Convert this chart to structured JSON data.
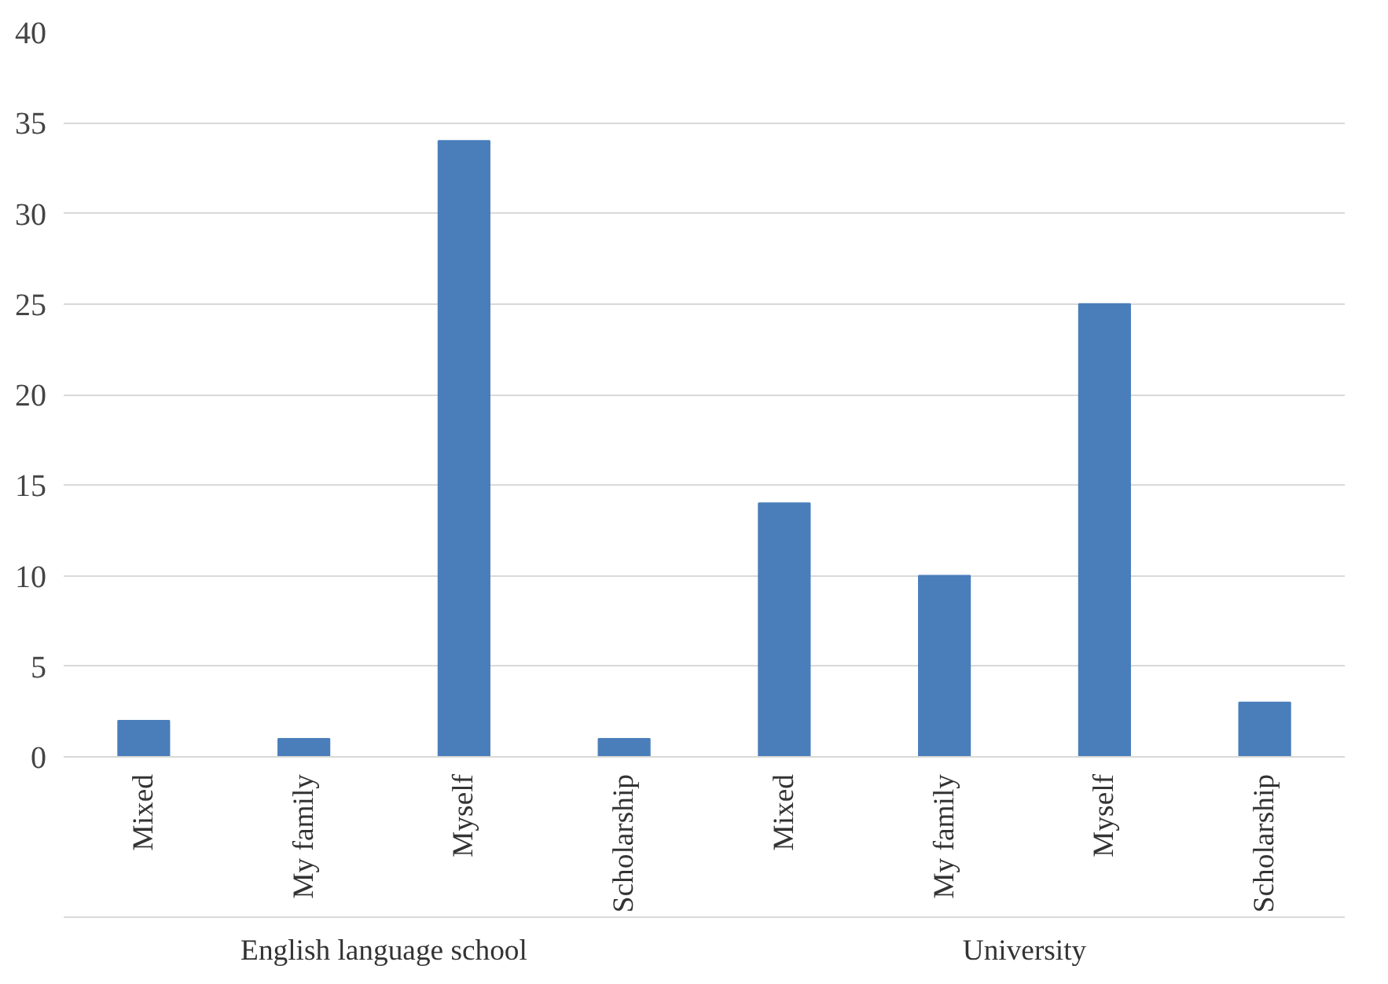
{
  "chart_data": {
    "type": "bar",
    "categories": [
      "Mixed",
      "My family",
      "Myself",
      "Scholarship",
      "Mixed",
      "My family",
      "Myself",
      "Scholarship"
    ],
    "values": [
      2,
      1,
      34,
      1,
      14,
      10,
      25,
      3
    ],
    "color": "#4a7ebb",
    "ylim": [
      0,
      40
    ],
    "yticks": [
      0,
      5,
      10,
      15,
      20,
      25,
      30,
      35,
      40
    ],
    "grid": "y",
    "annotations": [
      "English language school",
      "University"
    ]
  }
}
